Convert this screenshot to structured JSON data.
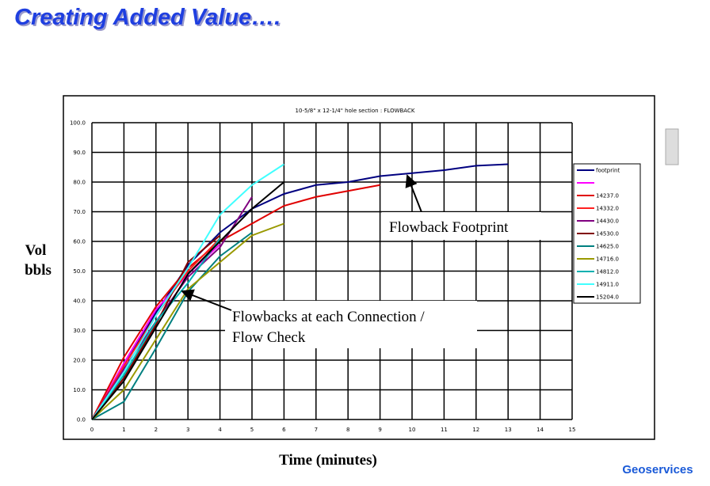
{
  "title": "Creating Added Value….",
  "logo": "Geoservices",
  "chart_data": {
    "type": "line",
    "title": "10-5/8\" x 12-1/4\" hole section : FLOWBACK",
    "y_label": [
      "Vol",
      "bbls"
    ],
    "x_label": "Time (minutes)",
    "x": [
      0,
      1,
      2,
      3,
      4,
      5,
      6,
      7,
      8,
      9,
      10,
      11,
      12,
      13
    ],
    "xlim": [
      0,
      15
    ],
    "xticks": [
      0,
      1,
      2,
      3,
      4,
      5,
      6,
      7,
      8,
      9,
      10,
      11,
      12,
      13,
      14,
      15
    ],
    "ylim": [
      0,
      100
    ],
    "yticks": [
      {
        "value": 0,
        "label": "0.0"
      },
      {
        "value": 10,
        "label": "10.0"
      },
      {
        "value": 20,
        "label": "20.0"
      },
      {
        "value": 30,
        "label": "30.0"
      },
      {
        "value": 40,
        "label": "40.0"
      },
      {
        "value": 50,
        "label": "50.0"
      },
      {
        "value": 60,
        "label": "60.0"
      },
      {
        "value": 70,
        "label": "70.0"
      },
      {
        "value": 80,
        "label": "80.0"
      },
      {
        "value": 90,
        "label": "90.0"
      },
      {
        "value": 100,
        "label": "100.0"
      }
    ],
    "grid": true,
    "legend": "right",
    "series": [
      {
        "name": "footprint",
        "color": "#000080",
        "values": [
          0,
          18,
          36,
          52,
          63,
          71,
          76,
          79,
          80,
          82,
          83,
          84,
          85.5,
          86
        ]
      },
      {
        "name": null,
        "color": "#ff00ff",
        "values": [
          0,
          19,
          37,
          49,
          59,
          null,
          null,
          null,
          null,
          null,
          null,
          null,
          null,
          null
        ]
      },
      {
        "name": "14237.0",
        "color": "#e00000",
        "values": [
          0,
          21,
          38,
          51,
          60,
          66,
          72,
          75,
          77,
          79,
          null,
          null,
          null,
          null
        ]
      },
      {
        "name": "14332.0",
        "color": "#ff2020",
        "values": [
          0,
          18,
          35,
          50,
          61,
          null,
          null,
          null,
          null,
          null,
          null,
          null,
          null,
          null
        ]
      },
      {
        "name": "14430.0",
        "color": "#800080",
        "values": [
          0,
          17,
          33,
          48,
          58,
          75,
          null,
          null,
          null,
          null,
          null,
          null,
          null,
          null
        ]
      },
      {
        "name": "14530.0",
        "color": "#800000",
        "values": [
          0,
          14,
          32,
          53,
          62,
          null,
          null,
          null,
          null,
          null,
          null,
          null,
          null,
          null
        ]
      },
      {
        "name": "14625.0",
        "color": "#008080",
        "values": [
          0,
          6,
          24,
          43,
          55,
          63,
          null,
          null,
          null,
          null,
          null,
          null,
          null,
          null
        ]
      },
      {
        "name": "14716.0",
        "color": "#999900",
        "values": [
          0,
          10,
          27,
          44,
          53,
          62,
          66,
          null,
          null,
          null,
          null,
          null,
          null,
          null
        ]
      },
      {
        "name": "14812.0",
        "color": "#00b0b0",
        "values": [
          0,
          15,
          33,
          46,
          61,
          null,
          null,
          null,
          null,
          null,
          null,
          null,
          null,
          null
        ]
      },
      {
        "name": "14911.0",
        "color": "#40ffff",
        "values": [
          0,
          16,
          35,
          51,
          69,
          79,
          86,
          null,
          null,
          null,
          null,
          null,
          null,
          null
        ]
      },
      {
        "name": "15204.0",
        "color": "#000000",
        "values": [
          0,
          13,
          31,
          49,
          60,
          71,
          80,
          null,
          null,
          null,
          null,
          null,
          null,
          null
        ]
      }
    ],
    "annotations": [
      {
        "text": [
          "Flowback Footprint"
        ]
      },
      {
        "text": [
          "Flowbacks at each Connection /",
          "Flow Check"
        ]
      }
    ]
  }
}
